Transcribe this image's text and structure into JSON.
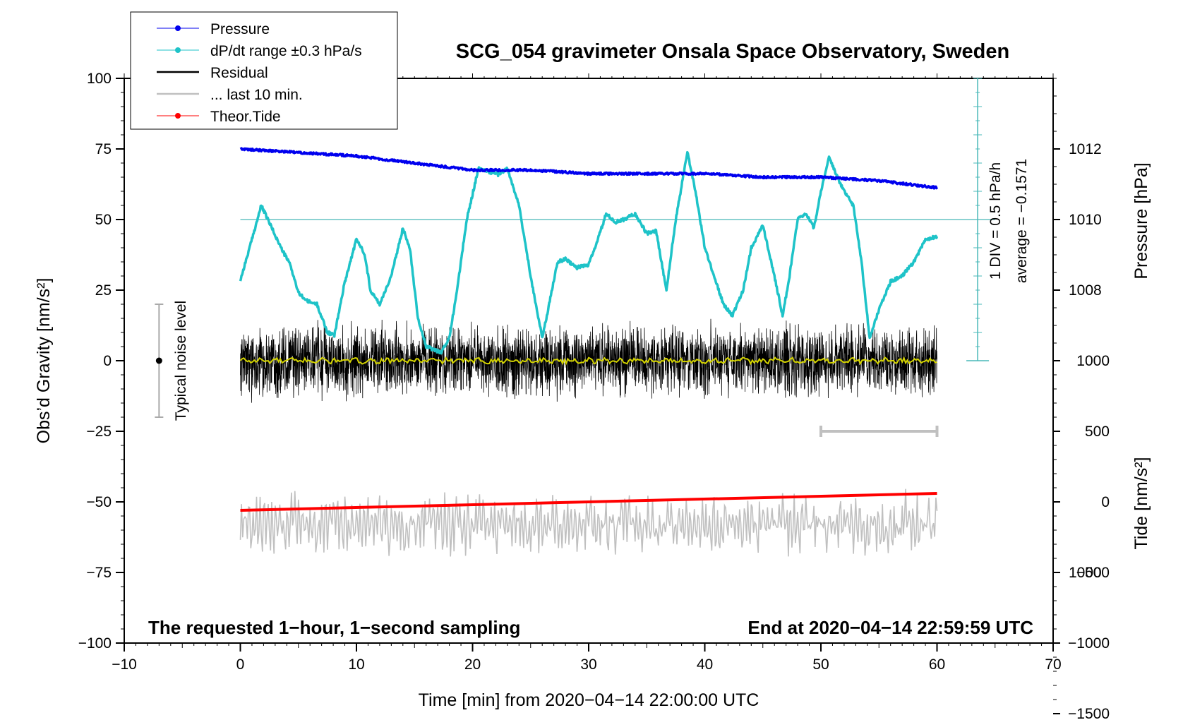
{
  "colors": {
    "pressure": "#0000ee",
    "dpdt": "#1ec3c8",
    "residual": "#000000",
    "last10": "#c0c0c0",
    "tide": "#ff0000",
    "smooth": "#d4d400",
    "scale_line": "#48b8b8"
  },
  "chart_data": {
    "type": "line",
    "title": "SCG_054 gravimeter Onsala Space Observatory, Sweden",
    "xlabel": "Time [min] from 2020−04−14 22:00:00 UTC",
    "ylabel_left": "Obs’d Gravity [nm/s²]",
    "ylabel_pressure": "Pressure [hPa]",
    "ylabel_tide": "Tide [nm/s²]",
    "xlim": [
      -10,
      70
    ],
    "ylim": [
      -100,
      100
    ],
    "x_ticks": [
      -10,
      0,
      10,
      20,
      30,
      40,
      50,
      60,
      70
    ],
    "x_tick_labels": [
      "−10",
      "0",
      "10",
      "20",
      "30",
      "40",
      "50",
      "60",
      "70"
    ],
    "y_ticks": [
      -100,
      -75,
      -50,
      -25,
      0,
      25,
      50,
      75,
      100
    ],
    "y_tick_labels": [
      "−100",
      "−75",
      "−50",
      "−25",
      "0",
      "25",
      "50",
      "75",
      "100"
    ],
    "pressure_axis": {
      "range_hPa": [
        1000,
        1014
      ],
      "ticks": [
        1000,
        1008,
        1010,
        1012
      ],
      "tick_labels": [
        "1000",
        "1008",
        "1010",
        "1012"
      ]
    },
    "tide_axis": {
      "range": [
        -1500,
        1000
      ],
      "ticks": [
        -1500,
        -1000,
        -500,
        0,
        500,
        1000
      ],
      "tick_labels": [
        "−1500",
        "−1000",
        "−500",
        "0",
        "500",
        "1000"
      ]
    },
    "legend": [
      {
        "label": "Pressure",
        "color": "#0000ee",
        "marker": true
      },
      {
        "label": "dP/dt range ±0.3 hPa/s",
        "color": "#1ec3c8",
        "marker": true
      },
      {
        "label": "Residual",
        "color": "#000000",
        "marker": false
      },
      {
        "label": "... last 10 min.",
        "color": "#c0c0c0",
        "marker": false
      },
      {
        "label": "Theor.Tide",
        "color": "#ff0000",
        "marker": true
      }
    ],
    "series": [
      {
        "name": "Pressure",
        "unit": "hPa",
        "x": [
          0,
          5,
          10,
          15,
          20,
          25,
          30,
          35,
          40,
          45,
          50,
          55,
          60
        ],
        "values": [
          1012.0,
          1011.9,
          1011.8,
          1011.6,
          1011.4,
          1011.4,
          1011.3,
          1011.3,
          1011.3,
          1011.2,
          1011.2,
          1011.1,
          1010.9
        ]
      },
      {
        "name": "dP/dt",
        "unit": "nm/s² on left axis",
        "x": [
          0,
          0.8,
          1.8,
          2.6,
          3.5,
          4.3,
          5.0,
          5.8,
          6.6,
          7.5,
          8.1,
          9.0,
          10.0,
          10.7,
          11.2,
          12.0,
          13.0,
          14.0,
          14.6,
          15.3,
          16.0,
          17.3,
          18.0,
          18.7,
          19.5,
          20.5,
          21.4,
          22.2,
          23.0,
          24.0,
          25.0,
          26.0,
          26.6,
          27.3,
          28.0,
          29.0,
          30.0,
          30.8,
          31.5,
          32.3,
          33.0,
          34.0,
          35.0,
          35.8,
          36.7,
          37.5,
          38.5,
          39.2,
          40.0,
          40.8,
          41.6,
          42.4,
          43.3,
          44.0,
          45.0,
          46.0,
          46.7,
          47.3,
          48.0,
          48.7,
          49.4,
          50.0,
          50.7,
          51.3,
          52.0,
          52.8,
          53.5,
          54.2,
          55.0,
          56.0,
          57.0,
          58.0,
          59.0,
          60.0
        ],
        "values": [
          28.5,
          40.0,
          55.0,
          48.0,
          40.0,
          34.0,
          24.0,
          21.0,
          20.0,
          10.0,
          9.0,
          28.0,
          43.0,
          38.0,
          25.0,
          20.0,
          30.0,
          47.0,
          40.0,
          15.0,
          5.0,
          3.0,
          8.0,
          26.0,
          50.0,
          68.0,
          67.0,
          66.0,
          68.0,
          55.0,
          30.0,
          8.0,
          20.0,
          35.0,
          36.0,
          33.0,
          34.0,
          43.0,
          52.0,
          49.0,
          50.0,
          52.0,
          45.0,
          46.0,
          25.0,
          50.0,
          74.0,
          60.0,
          40.0,
          30.0,
          20.0,
          16.0,
          25.0,
          40.0,
          48.0,
          30.0,
          16.0,
          30.0,
          50.0,
          52.0,
          47.0,
          60.0,
          72.0,
          66.0,
          60.0,
          55.0,
          35.0,
          8.0,
          18.0,
          28.0,
          30.0,
          35.0,
          43.0,
          44.0
        ]
      },
      {
        "name": "Residual",
        "unit": "nm/s²",
        "x": [
          0,
          60
        ],
        "values": [
          0,
          0
        ],
        "noise_amplitude": 15,
        "min": -18,
        "max": 17
      },
      {
        "name": "Smoothed residual",
        "unit": "nm/s²",
        "x": [
          0,
          60
        ],
        "values": [
          0,
          0
        ]
      },
      {
        "name": "... last 10 min.",
        "unit": "nm/s²",
        "x": [
          0,
          60
        ],
        "values": [
          -58,
          -58
        ],
        "min": -79,
        "max": -40
      },
      {
        "name": "Theor.Tide",
        "unit": "nm/s²",
        "x": [
          0,
          60
        ],
        "values": [
          -53,
          -47
        ]
      }
    ],
    "dpdt_reference_level": 50,
    "dpdt_scale_bar": {
      "label": "1 DIV = 0.5 hPa/h",
      "x": 63.5,
      "y_from": 0,
      "y_to": 100,
      "divisions": 20
    },
    "average_label": "average = −0.1571",
    "noise_bar": {
      "label": "Typical noise level",
      "x": -7,
      "center": 0,
      "half_range": 20
    },
    "last10_bar": {
      "x_from": 50,
      "x_to": 60,
      "y": -25
    },
    "notes": {
      "left": "The requested 1−hour, 1−second sampling",
      "right": "End at 2020−04−14 22:59:59 UTC"
    }
  }
}
